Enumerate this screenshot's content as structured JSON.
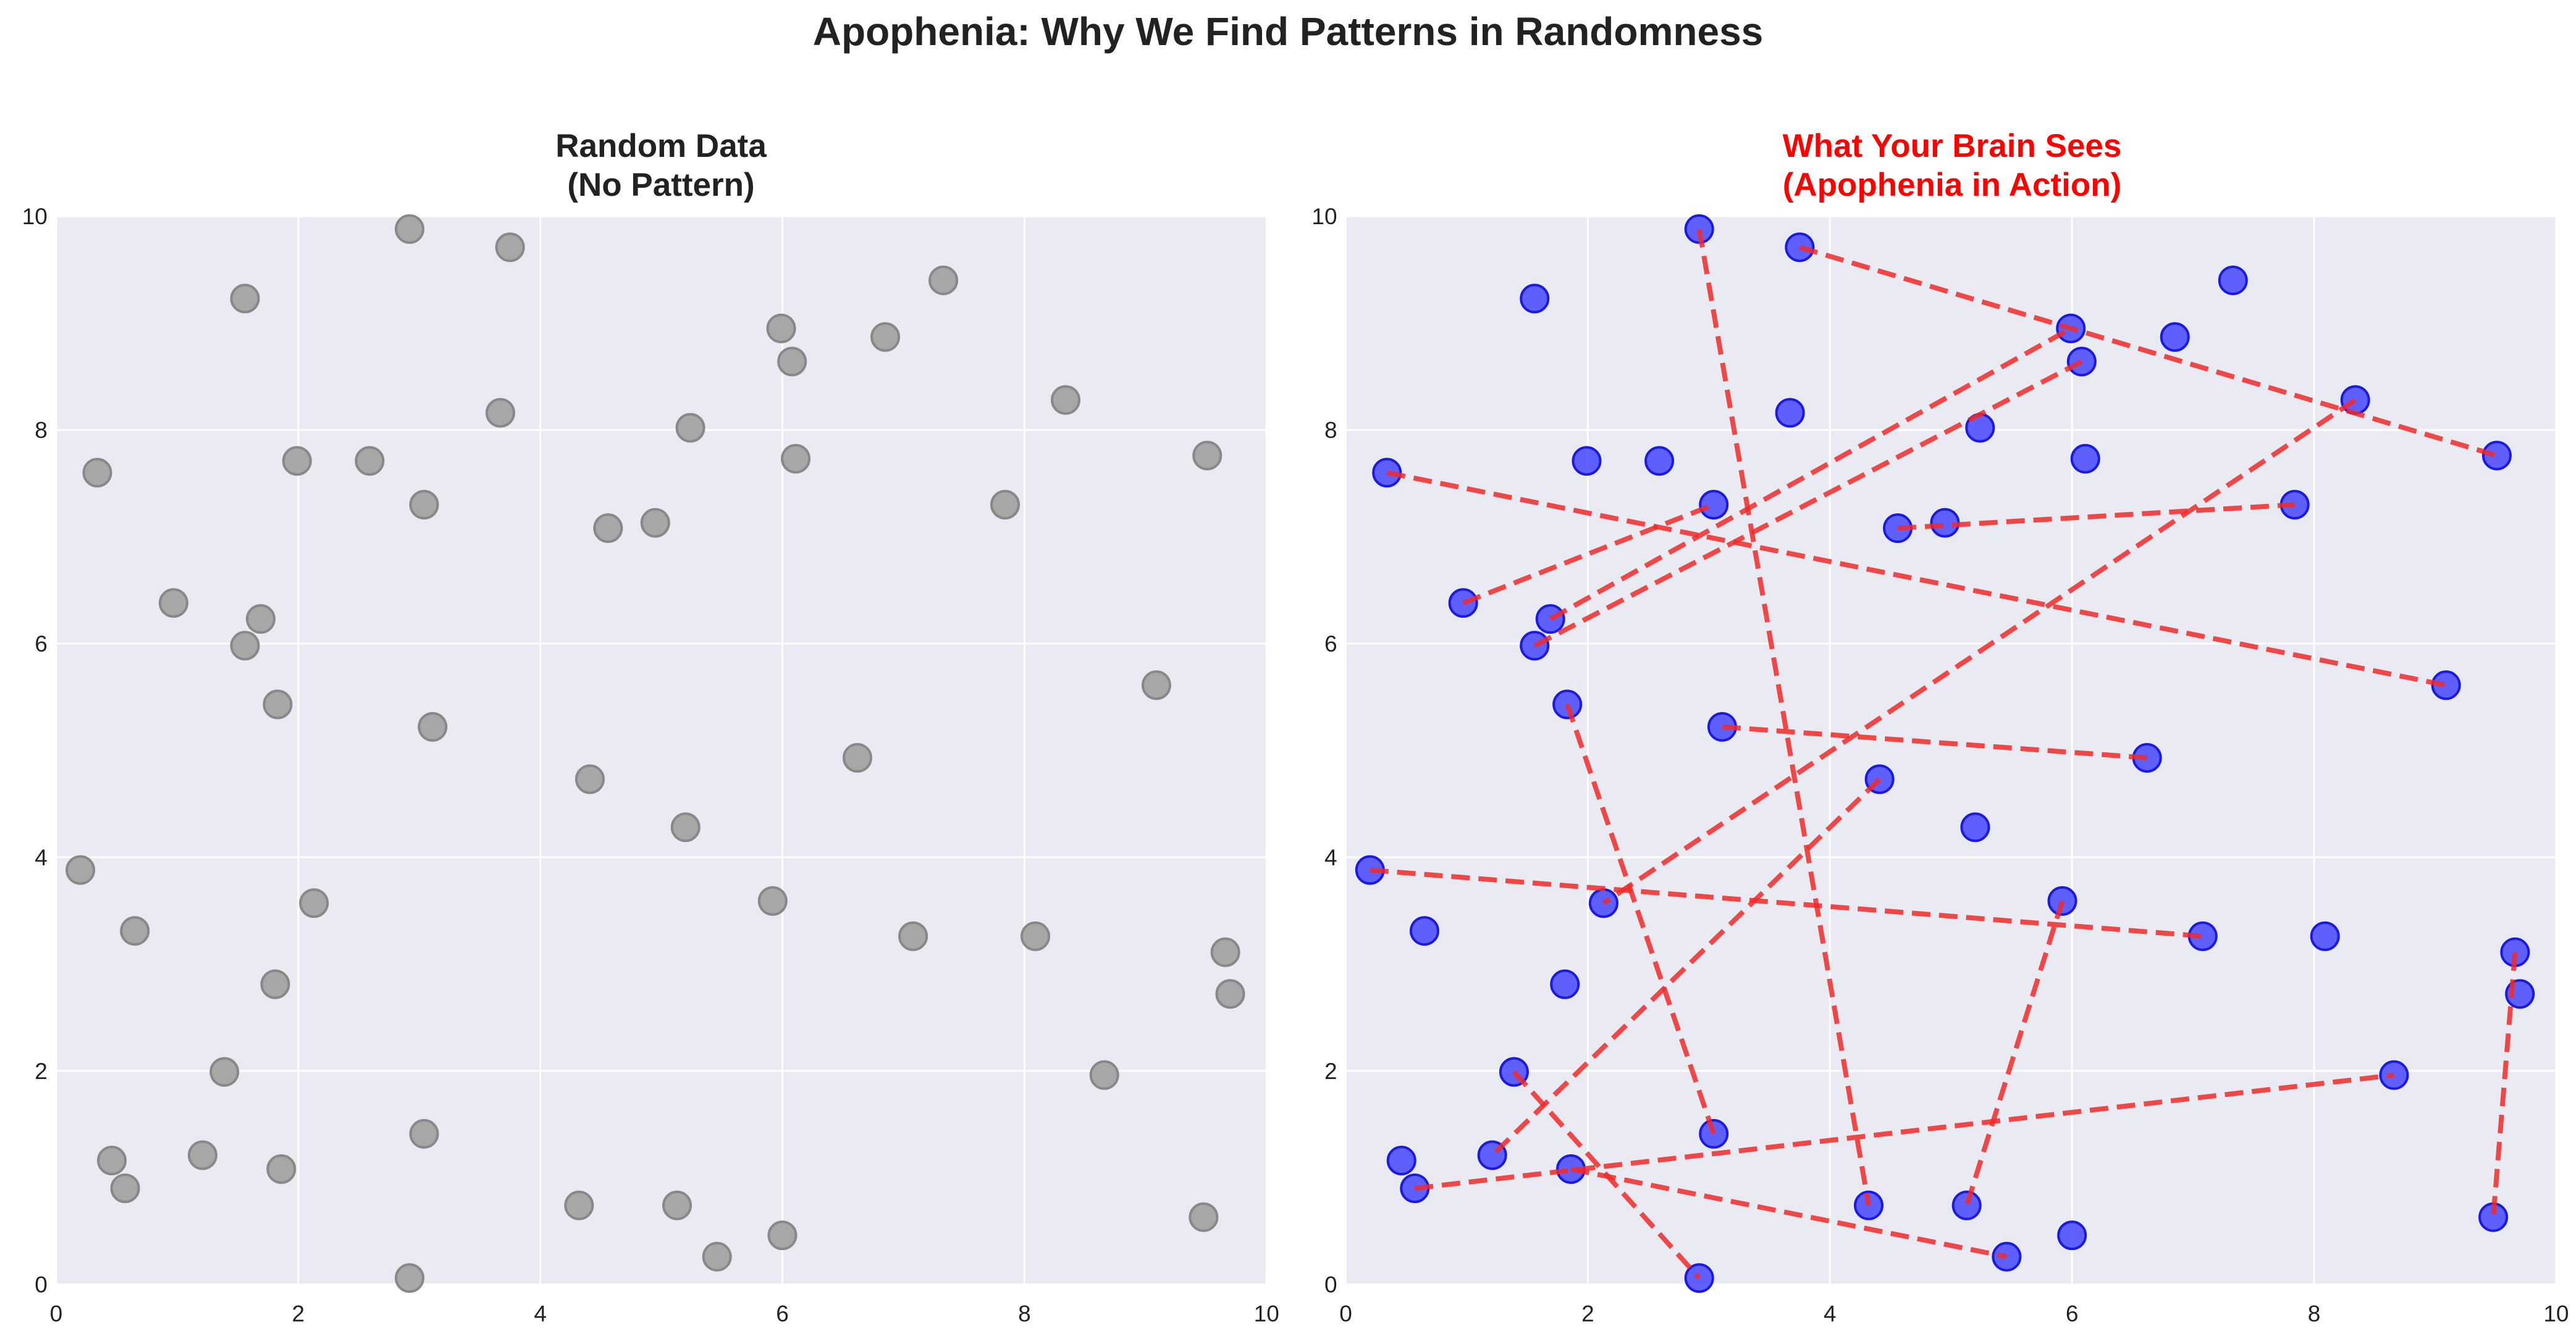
{
  "chart_data": [
    {
      "type": "scatter",
      "title": "Random Data\n(No Pattern)",
      "title_line1": "Random Data",
      "title_line2": "(No Pattern)",
      "title_color": "#222222",
      "xlabel": "",
      "ylabel": "",
      "xlim": [
        0,
        10
      ],
      "ylim": [
        0,
        10
      ],
      "xticks": [
        0,
        2,
        4,
        6,
        8,
        10
      ],
      "yticks": [
        0,
        2,
        4,
        6,
        8,
        10
      ],
      "grid": true,
      "marker_color": "#a0a0a0",
      "marker_edge": "#888888",
      "points": [
        [
          2.92,
          9.88
        ],
        [
          3.75,
          9.71
        ],
        [
          1.56,
          9.23
        ],
        [
          7.33,
          9.4
        ],
        [
          5.99,
          8.95
        ],
        [
          6.85,
          8.87
        ],
        [
          6.08,
          8.64
        ],
        [
          8.34,
          8.28
        ],
        [
          3.67,
          8.16
        ],
        [
          5.24,
          8.02
        ],
        [
          0.34,
          7.6
        ],
        [
          1.99,
          7.71
        ],
        [
          2.59,
          7.71
        ],
        [
          6.11,
          7.73
        ],
        [
          9.51,
          7.76
        ],
        [
          3.04,
          7.3
        ],
        [
          7.84,
          7.3
        ],
        [
          4.56,
          7.08
        ],
        [
          4.95,
          7.13
        ],
        [
          0.97,
          6.38
        ],
        [
          1.69,
          6.23
        ],
        [
          1.56,
          5.98
        ],
        [
          9.09,
          5.61
        ],
        [
          1.83,
          5.43
        ],
        [
          3.11,
          5.22
        ],
        [
          6.62,
          4.93
        ],
        [
          4.41,
          4.73
        ],
        [
          5.2,
          4.28
        ],
        [
          0.2,
          3.88
        ],
        [
          5.92,
          3.59
        ],
        [
          2.13,
          3.57
        ],
        [
          0.65,
          3.31
        ],
        [
          7.08,
          3.26
        ],
        [
          8.09,
          3.26
        ],
        [
          9.66,
          3.11
        ],
        [
          9.7,
          2.72
        ],
        [
          1.81,
          2.81
        ],
        [
          1.39,
          1.99
        ],
        [
          8.66,
          1.96
        ],
        [
          3.04,
          1.41
        ],
        [
          0.46,
          1.16
        ],
        [
          1.21,
          1.21
        ],
        [
          1.86,
          1.08
        ],
        [
          0.57,
          0.9
        ],
        [
          4.32,
          0.74
        ],
        [
          5.13,
          0.74
        ],
        [
          9.48,
          0.63
        ],
        [
          6.0,
          0.46
        ],
        [
          5.46,
          0.26
        ],
        [
          2.92,
          0.06
        ]
      ]
    },
    {
      "type": "scatter",
      "title": "What Your Brain Sees\n(Apophenia in Action)",
      "title_line1": "What Your Brain Sees",
      "title_line2": "(Apophenia in Action)",
      "title_color": "#ff0000",
      "xlabel": "",
      "ylabel": "",
      "xlim": [
        0,
        10
      ],
      "ylim": [
        0,
        10
      ],
      "xticks": [
        0,
        2,
        4,
        6,
        8,
        10
      ],
      "yticks": [
        0,
        2,
        4,
        6,
        8,
        10
      ],
      "grid": true,
      "marker_color": "#5050ff",
      "marker_edge": "#1a1ae0",
      "line_color": "#ee2a2a",
      "line_style": "dashed",
      "points": "same as Random Data",
      "connections": [
        [
          [
            0.34,
            7.6
          ],
          [
            9.09,
            5.61
          ]
        ],
        [
          [
            3.75,
            9.71
          ],
          [
            9.51,
            7.76
          ]
        ],
        [
          [
            8.34,
            8.28
          ],
          [
            2.13,
            3.57
          ]
        ],
        [
          [
            2.92,
            9.88
          ],
          [
            4.32,
            0.74
          ]
        ],
        [
          [
            0.97,
            6.38
          ],
          [
            3.04,
            7.3
          ]
        ],
        [
          [
            1.69,
            6.23
          ],
          [
            5.99,
            8.95
          ]
        ],
        [
          [
            1.56,
            5.98
          ],
          [
            6.08,
            8.64
          ]
        ],
        [
          [
            4.56,
            7.08
          ],
          [
            7.84,
            7.3
          ]
        ],
        [
          [
            3.11,
            5.22
          ],
          [
            6.62,
            4.93
          ]
        ],
        [
          [
            1.83,
            5.43
          ],
          [
            3.04,
            1.41
          ]
        ],
        [
          [
            0.2,
            3.88
          ],
          [
            7.08,
            3.26
          ]
        ],
        [
          [
            4.41,
            4.73
          ],
          [
            1.21,
            1.21
          ]
        ],
        [
          [
            5.92,
            3.59
          ],
          [
            5.13,
            0.74
          ]
        ],
        [
          [
            9.66,
            3.11
          ],
          [
            9.48,
            0.63
          ]
        ],
        [
          [
            0.57,
            0.9
          ],
          [
            8.66,
            1.96
          ]
        ],
        [
          [
            1.86,
            1.08
          ],
          [
            5.46,
            0.26
          ]
        ],
        [
          [
            1.39,
            1.99
          ],
          [
            2.92,
            0.06
          ]
        ]
      ]
    }
  ],
  "figure": {
    "suptitle": "Apophenia: Why We Find Patterns in Randomness",
    "background": "#ffffff",
    "axes_background": "#eaeaf2",
    "grid_color": "#ffffff"
  }
}
